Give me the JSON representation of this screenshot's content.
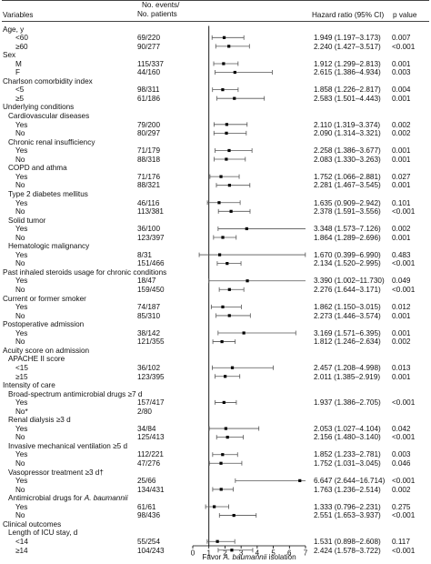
{
  "headers": {
    "variables": "Variables",
    "events_line1": "No. events/",
    "events_line2": "No. patients",
    "hr": "Hazard ratio (95% CI)",
    "p": "p value"
  },
  "rows": [
    {
      "label": "Age, y",
      "indent": 0
    },
    {
      "label": "<60",
      "indent": 2,
      "n": "69/220",
      "hr": 1.949,
      "lo": 1.197,
      "hi": 3.173,
      "ci": "1.949 (1.197–3.173)",
      "p": "0.007"
    },
    {
      "label": "≥60",
      "indent": 2,
      "n": "90/277",
      "hr": 2.24,
      "lo": 1.427,
      "hi": 3.517,
      "ci": "2.240 (1.427–3.517)",
      "p": "<0.001"
    },
    {
      "label": "Sex",
      "indent": 0
    },
    {
      "label": "M",
      "indent": 2,
      "n": "115/337",
      "hr": 1.912,
      "lo": 1.299,
      "hi": 2.813,
      "ci": "1.912 (1.299–2.813)",
      "p": "0.001"
    },
    {
      "label": "F",
      "indent": 2,
      "n": "44/160",
      "hr": 2.615,
      "lo": 1.386,
      "hi": 4.934,
      "ci": "2.615 (1.386–4.934)",
      "p": "0.003"
    },
    {
      "label": "Charlson comorbidity index",
      "indent": 0
    },
    {
      "label": "<5",
      "indent": 2,
      "n": "98/311",
      "hr": 1.858,
      "lo": 1.226,
      "hi": 2.817,
      "ci": "1.858 (1.226–2.817)",
      "p": "0.004"
    },
    {
      "label": "≥5",
      "indent": 2,
      "n": "61/186",
      "hr": 2.583,
      "lo": 1.501,
      "hi": 4.443,
      "ci": "2.583 (1.501–4.443)",
      "p": "0.001"
    },
    {
      "label": "Underlying conditions",
      "indent": 0
    },
    {
      "label": "Cardiovascular diseases",
      "indent": 1
    },
    {
      "label": "Yes",
      "indent": 2,
      "n": "79/200",
      "hr": 2.11,
      "lo": 1.319,
      "hi": 3.374,
      "ci": "2.110 (1.319–3.374)",
      "p": "0.002"
    },
    {
      "label": "No",
      "indent": 2,
      "n": "80/297",
      "hr": 2.09,
      "lo": 1.314,
      "hi": 3.321,
      "ci": "2.090 (1.314–3.321)",
      "p": "0.002"
    },
    {
      "label": "Chronic renal insufficiency",
      "indent": 1
    },
    {
      "label": "Yes",
      "indent": 2,
      "n": "71/179",
      "hr": 2.258,
      "lo": 1.386,
      "hi": 3.677,
      "ci": "2.258 (1.386–3.677)",
      "p": "0.001"
    },
    {
      "label": "No",
      "indent": 2,
      "n": "88/318",
      "hr": 2.083,
      "lo": 1.33,
      "hi": 3.263,
      "ci": "2.083 (1.330–3.263)",
      "p": "0.001"
    },
    {
      "label": "COPD and athma",
      "indent": 1
    },
    {
      "label": "Yes",
      "indent": 2,
      "n": "71/176",
      "hr": 1.752,
      "lo": 1.066,
      "hi": 2.881,
      "ci": "1.752 (1.066–2.881)",
      "p": "0.027"
    },
    {
      "label": "No",
      "indent": 2,
      "n": "88/321",
      "hr": 2.281,
      "lo": 1.467,
      "hi": 3.545,
      "ci": "2.281 (1.467–3.545)",
      "p": "0.001"
    },
    {
      "label": "Type 2 diabetes mellitus",
      "indent": 1
    },
    {
      "label": "Yes",
      "indent": 2,
      "n": "46/116",
      "hr": 1.635,
      "lo": 0.909,
      "hi": 2.942,
      "ci": "1.635 (0.909–2.942)",
      "p": "0.101"
    },
    {
      "label": "No",
      "indent": 2,
      "n": "113/381",
      "hr": 2.378,
      "lo": 1.591,
      "hi": 3.556,
      "ci": "2.378 (1.591–3.556)",
      "p": "<0.001"
    },
    {
      "label": "Solid tumor",
      "indent": 1
    },
    {
      "label": "Yes",
      "indent": 2,
      "n": "36/100",
      "hr": 3.348,
      "lo": 1.573,
      "hi": 7.126,
      "ci": "3.348 (1.573–7.126)",
      "p": "0.002"
    },
    {
      "label": "No",
      "indent": 2,
      "n": "123/397",
      "hr": 1.864,
      "lo": 1.289,
      "hi": 2.696,
      "ci": "1.864 (1.289–2.696)",
      "p": "0.001"
    },
    {
      "label": "Hematologic malignancy",
      "indent": 1
    },
    {
      "label": "Yes",
      "indent": 2,
      "n": "8/31",
      "hr": 1.67,
      "lo": 0.399,
      "hi": 6.99,
      "ci": "1.670 (0.399–6.990)",
      "p": "0.483"
    },
    {
      "label": "No",
      "indent": 2,
      "n": "151/466",
      "hr": 2.134,
      "lo": 1.52,
      "hi": 2.995,
      "ci": "2.134 (1.520–2.995)",
      "p": "<0.001"
    },
    {
      "label": "Past inhaled steroids usage for chronic conditions",
      "indent": 0
    },
    {
      "label": "Yes",
      "indent": 2,
      "n": "18/47",
      "hr": 3.39,
      "lo": 1.002,
      "hi": 11.73,
      "ci": "3.390 (1.002–11.730)",
      "p": "0.049"
    },
    {
      "label": "No",
      "indent": 2,
      "n": "159/450",
      "hr": 2.276,
      "lo": 1.644,
      "hi": 3.171,
      "ci": "2.276 (1.644–3.171)",
      "p": "<0.001"
    },
    {
      "label": "Current or former smoker",
      "indent": 0
    },
    {
      "label": "Yes",
      "indent": 2,
      "n": "74/187",
      "hr": 1.862,
      "lo": 1.15,
      "hi": 3.015,
      "ci": "1.862 (1.150–3.015)",
      "p": "0.012"
    },
    {
      "label": "No",
      "indent": 2,
      "n": "85/310",
      "hr": 2.273,
      "lo": 1.446,
      "hi": 3.574,
      "ci": "2.273 (1.446–3.574)",
      "p": "0.001"
    },
    {
      "label": "Postoperative admission",
      "indent": 0
    },
    {
      "label": "Yes",
      "indent": 2,
      "n": "38/142",
      "hr": 3.169,
      "lo": 1.571,
      "hi": 6.395,
      "ci": "3.169 (1.571–6.395)",
      "p": "0.001"
    },
    {
      "label": "No",
      "indent": 2,
      "n": "121/355",
      "hr": 1.812,
      "lo": 1.246,
      "hi": 2.634,
      "ci": "1.812 (1.246–2.634)",
      "p": "0.002"
    },
    {
      "label": "Acuity score on admission",
      "indent": 0
    },
    {
      "label": "APACHE II score",
      "indent": 1
    },
    {
      "label": "<15",
      "indent": 2,
      "n": "36/102",
      "hr": 2.457,
      "lo": 1.208,
      "hi": 4.998,
      "ci": "2.457 (1.208–4.998)",
      "p": "0.013"
    },
    {
      "label": "≥15",
      "indent": 2,
      "n": "123/395",
      "hr": 2.011,
      "lo": 1.385,
      "hi": 2.919,
      "ci": "2.011 (1.385–2.919)",
      "p": "0.001"
    },
    {
      "label": "Intensity of care",
      "indent": 0
    },
    {
      "label": "Broad-spectrum antimicrobial drugs ≥7 d",
      "indent": 1
    },
    {
      "label": "Yes",
      "indent": 2,
      "n": "157/417",
      "hr": 1.937,
      "lo": 1.386,
      "hi": 2.705,
      "ci": "1.937 (1.386–2.705)",
      "p": "<0.001"
    },
    {
      "label": "No*",
      "indent": 2,
      "n": "2/80"
    },
    {
      "label": "Renal dialysis ≥3 d",
      "indent": 1
    },
    {
      "label": "Yes",
      "indent": 2,
      "n": "34/84",
      "hr": 2.053,
      "lo": 1.027,
      "hi": 4.104,
      "ci": "2.053 (1.027–4.104)",
      "p": "0.042"
    },
    {
      "label": "No",
      "indent": 2,
      "n": "125/413",
      "hr": 2.156,
      "lo": 1.48,
      "hi": 3.14,
      "ci": "2.156 (1.480–3.140)",
      "p": "<0.001"
    },
    {
      "label": "Invasive mechanical ventilation ≥5 d",
      "indent": 1
    },
    {
      "label": "Yes",
      "indent": 2,
      "n": "112/221",
      "hr": 1.852,
      "lo": 1.233,
      "hi": 2.781,
      "ci": "1.852 (1.233–2.781)",
      "p": "0.003"
    },
    {
      "label": "No",
      "indent": 2,
      "n": "47/276",
      "hr": 1.752,
      "lo": 1.031,
      "hi": 3.045,
      "ci": "1.752 (1.031–3.045)",
      "p": "0.046"
    },
    {
      "label": "Vasopressor treatment ≥3 d†",
      "indent": 1
    },
    {
      "label": "Yes",
      "indent": 2,
      "n": "25/66",
      "hr": 6.647,
      "lo": 2.644,
      "hi": 16.714,
      "ci": "6.647 (2.644–16.714)",
      "p": "<0.001"
    },
    {
      "label": "No",
      "indent": 2,
      "n": "134/431",
      "hr": 1.763,
      "lo": 1.236,
      "hi": 2.514,
      "ci": "1.763 (1.236–2.514)",
      "p": "0.002"
    },
    {
      "label": "Antimicrobial drugs for A. baumannii",
      "indent": 1,
      "italic_part": "A. baumannii"
    },
    {
      "label": "Yes",
      "indent": 2,
      "n": "61/61",
      "hr": 1.333,
      "lo": 0.796,
      "hi": 2.231,
      "ci": "1.333 (0.796–2.231)",
      "p": "0.275"
    },
    {
      "label": "No",
      "indent": 2,
      "n": "98/436",
      "hr": 2.551,
      "lo": 1.653,
      "hi": 3.937,
      "ci": "2.551 (1.653–3.937)",
      "p": "<0.001"
    },
    {
      "label": "Clinical outcomes",
      "indent": 0
    },
    {
      "label": "Length of ICU stay, d",
      "indent": 1
    },
    {
      "label": "<14",
      "indent": 2,
      "n": "55/254",
      "hr": 1.531,
      "lo": 0.898,
      "hi": 2.608,
      "ci": "1.531 (0.898–2.608)",
      "p": "0.117"
    },
    {
      "label": "≥14",
      "indent": 2,
      "n": "104/243",
      "hr": 2.424,
      "lo": 1.578,
      "hi": 3.722,
      "ci": "2.424 (1.578–3.722)",
      "p": "<0.001"
    }
  ],
  "chart_data": {
    "type": "forest",
    "x_ticks": [
      0,
      1,
      2,
      3,
      4,
      5,
      6,
      7
    ],
    "xlim": [
      0,
      7
    ],
    "reference_line": 1,
    "xlabel_prefix": "Favor ",
    "xlabel_italic": "A. baumannii",
    "xlabel_suffix": " isolation",
    "marker_color": "#000000",
    "ci_color": "#555555"
  }
}
